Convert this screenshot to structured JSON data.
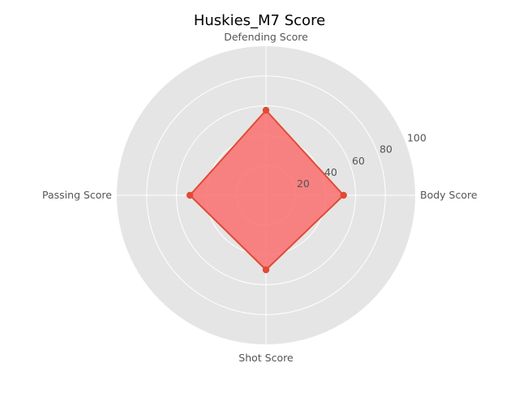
{
  "chart_data": {
    "type": "radar",
    "title": "Huskies_M7 Score",
    "categories": [
      "Body Score",
      "Defending Score",
      "Passing Score",
      "Shot Score"
    ],
    "series": [
      {
        "values": [
          52,
          57,
          51,
          50
        ]
      }
    ],
    "rlim": [
      0,
      100
    ],
    "r_ticks": [
      20,
      40,
      60,
      80,
      100
    ],
    "grid": true,
    "colors": {
      "background": "#e5e5e5",
      "grid": "#ffffff",
      "series_line": "#e24a33",
      "series_fill": "#fa7070"
    }
  }
}
